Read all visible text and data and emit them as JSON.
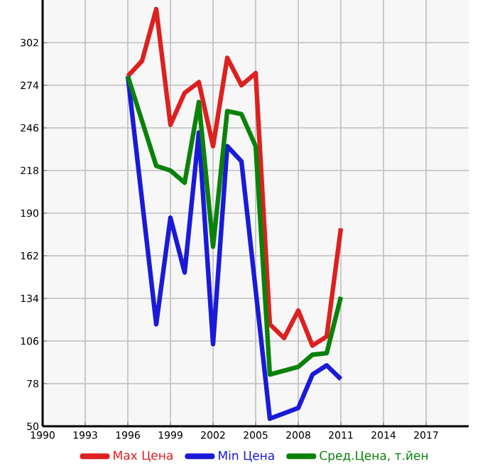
{
  "chart_data": {
    "type": "line",
    "xlim": [
      1990,
      2020
    ],
    "ylim": [
      50,
      330
    ],
    "xticks": [
      1990,
      1993,
      1996,
      1999,
      2002,
      2005,
      2008,
      2011,
      2014,
      2017
    ],
    "yticks": [
      50,
      78,
      106,
      134,
      162,
      190,
      218,
      246,
      274,
      302
    ],
    "grid": true,
    "legend": "bottom",
    "marker": "none",
    "line_style": "solid",
    "series": [
      {
        "name": "Max Цена",
        "color": "#dd2020",
        "x": [
          1996,
          1997,
          1998,
          1999,
          2000,
          2001,
          2002,
          2003,
          2004,
          2005,
          2006,
          2007,
          2008,
          2009,
          2010,
          2011
        ],
        "values": [
          280,
          290,
          324,
          248,
          269,
          276,
          234,
          292,
          274,
          282,
          117,
          108,
          126,
          103,
          109,
          180
        ]
      },
      {
        "name": "Min Цена",
        "color": "#1a1ad8",
        "x": [
          1996,
          1998,
          1999,
          2000,
          2001,
          2002,
          2003,
          2004,
          2006,
          2008,
          2009,
          2010,
          2011
        ],
        "values": [
          280,
          117,
          187,
          151,
          243,
          104,
          234,
          224,
          55,
          62,
          84,
          90,
          81
        ]
      },
      {
        "name": "Сред.Цена, т.йен",
        "color": "#0a820a",
        "x": [
          1996,
          1998,
          1999,
          2000,
          2001,
          2002,
          2003,
          2004,
          2005,
          2006,
          2008,
          2009,
          2010,
          2011
        ],
        "values": [
          280,
          221,
          218,
          210,
          263,
          168,
          257,
          255,
          234,
          84,
          89,
          97,
          98,
          135
        ]
      }
    ]
  }
}
